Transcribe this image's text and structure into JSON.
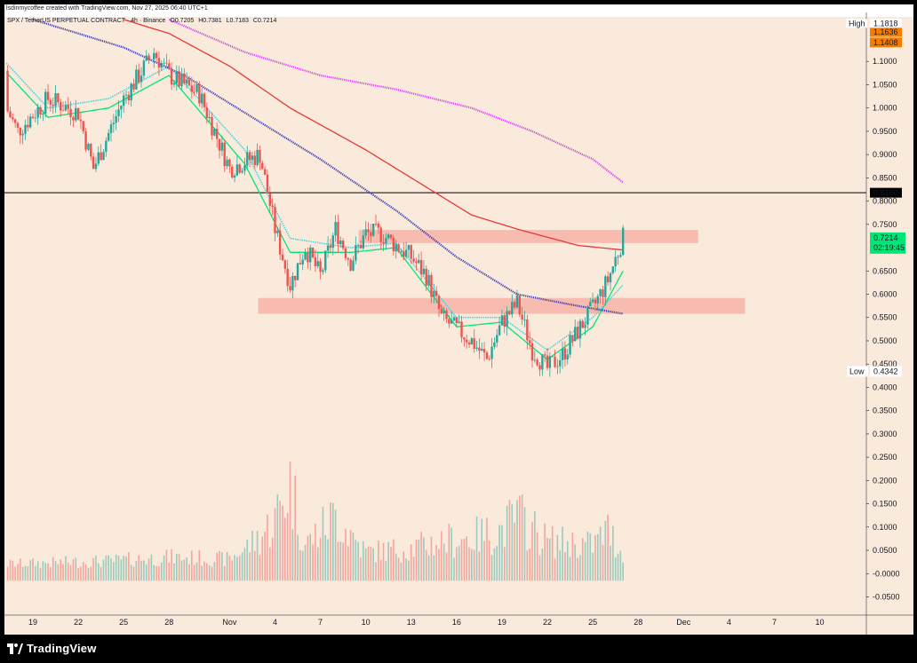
{
  "header": {
    "text": "lsdinmycoffee created with TradingView.com, Nov 27, 2025 06:40 UTC+1"
  },
  "legend": {
    "symbol": "SPX / TetherUS PERPETUAL CONTRACT · 4h · Binance",
    "open": "O0.7205",
    "high": "H0.7381",
    "low": "L0.7183",
    "close": "C0.7214"
  },
  "footer": {
    "brand": "TradingView"
  },
  "colors": {
    "background": "#faeadc",
    "up_candle": "#26a69a",
    "down_candle": "#ef5350",
    "ema_fast": "#00e676",
    "ema_cloud": "#4dd0e1",
    "ma_blue": "#3f3fb0",
    "ma_red": "#e53935",
    "ma_magenta": "#e040fb",
    "zone": "#f7b3a8",
    "current_price_bg": "#00e676",
    "high_low_badge": "#f57c00"
  },
  "chart_data": {
    "type": "candlestick",
    "title": "",
    "y_axis": {
      "ticks": [
        "1.1000",
        "1.0500",
        "1.0000",
        "0.9500",
        "0.9000",
        "0.8500",
        "0.8000",
        "0.7500",
        "0.6500",
        "0.6000",
        "0.5500",
        "0.5000",
        "0.4500",
        "0.4000",
        "0.3500",
        "0.3000",
        "0.2500",
        "0.2000",
        "0.1500",
        "0.1000",
        "0.0500",
        "-0.0000",
        "-0.0500"
      ],
      "range": [
        -0.07,
        1.19
      ]
    },
    "x_axis": {
      "ticks": [
        "19",
        "22",
        "25",
        "28",
        "Nov",
        "4",
        "7",
        "10",
        "13",
        "16",
        "19",
        "22",
        "25",
        "28",
        "Dec",
        "4",
        "7",
        "10"
      ]
    },
    "price_labels": {
      "high_label": "High",
      "high_value": "1.1818",
      "badge_a": "1.1636",
      "badge_b": "1.1408",
      "horizontal_line": "0.8180",
      "current_price": "0.7214",
      "countdown": "02:19:45",
      "low_label": "Low",
      "low_value": "0.4342"
    },
    "horizontal_line": 0.818,
    "resistance_zone": [
      0.71,
      0.738
    ],
    "support_zone": [
      0.558,
      0.592
    ],
    "price_path": [
      {
        "x": "Oct 16",
        "y": 1.08
      },
      {
        "x": "Oct 18",
        "y": 0.95
      },
      {
        "x": "Oct 20",
        "y": 1.02
      },
      {
        "x": "Oct 22",
        "y": 0.99
      },
      {
        "x": "Oct 23",
        "y": 0.87
      },
      {
        "x": "Oct 25",
        "y": 1.02
      },
      {
        "x": "Oct 27",
        "y": 1.12
      },
      {
        "x": "Oct 28",
        "y": 1.07
      },
      {
        "x": "Oct 30",
        "y": 1.03
      },
      {
        "x": "Nov 1",
        "y": 0.87
      },
      {
        "x": "Nov 3",
        "y": 0.9
      },
      {
        "x": "Nov 4",
        "y": 0.74
      },
      {
        "x": "Nov 5",
        "y": 0.62
      },
      {
        "x": "Nov 6",
        "y": 0.7
      },
      {
        "x": "Nov 7",
        "y": 0.64
      },
      {
        "x": "Nov 8",
        "y": 0.74
      },
      {
        "x": "Nov 9",
        "y": 0.67
      },
      {
        "x": "Nov 10",
        "y": 0.73
      },
      {
        "x": "Nov 11",
        "y": 0.73
      },
      {
        "x": "Nov 13",
        "y": 0.68
      },
      {
        "x": "Nov 14",
        "y": 0.64
      },
      {
        "x": "Nov 15",
        "y": 0.55
      },
      {
        "x": "Nov 17",
        "y": 0.5
      },
      {
        "x": "Nov 18",
        "y": 0.46
      },
      {
        "x": "Nov 19",
        "y": 0.54
      },
      {
        "x": "Nov 20",
        "y": 0.58
      },
      {
        "x": "Nov 21",
        "y": 0.48
      },
      {
        "x": "Nov 22",
        "y": 0.44
      },
      {
        "x": "Nov 23",
        "y": 0.47
      },
      {
        "x": "Nov 24",
        "y": 0.52
      },
      {
        "x": "Nov 25",
        "y": 0.57
      },
      {
        "x": "Nov 26",
        "y": 0.63
      },
      {
        "x": "Nov 27",
        "y": 0.7214
      }
    ],
    "series": [
      {
        "values": [
          {
            "x": "Oct 16",
            "y": 1.12
          },
          {
            "x": "Oct 20",
            "y": 0.98
          },
          {
            "x": "Oct 24",
            "y": 1.0
          },
          {
            "x": "Oct 28",
            "y": 1.07
          },
          {
            "x": "Nov 2",
            "y": 0.88
          },
          {
            "x": "Nov 5",
            "y": 0.69
          },
          {
            "x": "Nov 9",
            "y": 0.69
          },
          {
            "x": "Nov 12",
            "y": 0.7
          },
          {
            "x": "Nov 16",
            "y": 0.53
          },
          {
            "x": "Nov 19",
            "y": 0.54
          },
          {
            "x": "Nov 22",
            "y": 0.46
          },
          {
            "x": "Nov 25",
            "y": 0.53
          },
          {
            "x": "Nov 27",
            "y": 0.65
          }
        ]
      },
      {
        "values": [
          {
            "x": "Oct 16",
            "y": 1.14
          },
          {
            "x": "Oct 20",
            "y": 1.0
          },
          {
            "x": "Oct 24",
            "y": 1.02
          },
          {
            "x": "Oct 28",
            "y": 1.09
          },
          {
            "x": "Nov 2",
            "y": 0.91
          },
          {
            "x": "Nov 5",
            "y": 0.72
          },
          {
            "x": "Nov 9",
            "y": 0.7
          },
          {
            "x": "Nov 12",
            "y": 0.71
          },
          {
            "x": "Nov 16",
            "y": 0.55
          },
          {
            "x": "Nov 19",
            "y": 0.55
          },
          {
            "x": "Nov 22",
            "y": 0.48
          },
          {
            "x": "Nov 25",
            "y": 0.55
          },
          {
            "x": "Nov 27",
            "y": 0.62
          }
        ]
      },
      {
        "values": [
          {
            "x": "Oct 19",
            "y": 1.19
          },
          {
            "x": "Oct 25",
            "y": 1.13
          },
          {
            "x": "Oct 29",
            "y": 1.07
          },
          {
            "x": "Nov 2",
            "y": 0.99
          },
          {
            "x": "Nov 7",
            "y": 0.89
          },
          {
            "x": "Nov 12",
            "y": 0.78
          },
          {
            "x": "Nov 16",
            "y": 0.68
          },
          {
            "x": "Nov 20",
            "y": 0.6
          },
          {
            "x": "Nov 24",
            "y": 0.575
          },
          {
            "x": "Nov 27",
            "y": 0.558
          }
        ]
      },
      {
        "values": [
          {
            "x": "Oct 25",
            "y": 1.19
          },
          {
            "x": "Oct 28",
            "y": 1.16
          },
          {
            "x": "Nov 1",
            "y": 1.09
          },
          {
            "x": "Nov 5",
            "y": 1.0
          },
          {
            "x": "Nov 10",
            "y": 0.91
          },
          {
            "x": "Nov 14",
            "y": 0.83
          },
          {
            "x": "Nov 17",
            "y": 0.77
          },
          {
            "x": "Nov 20",
            "y": 0.74
          },
          {
            "x": "Nov 24",
            "y": 0.705
          },
          {
            "x": "Nov 27",
            "y": 0.695
          }
        ]
      },
      {
        "values": [
          {
            "x": "Oct 28",
            "y": 1.19
          },
          {
            "x": "Nov 2",
            "y": 1.12
          },
          {
            "x": "Nov 7",
            "y": 1.07
          },
          {
            "x": "Nov 12",
            "y": 1.04
          },
          {
            "x": "Nov 17",
            "y": 1.0
          },
          {
            "x": "Nov 21",
            "y": 0.95
          },
          {
            "x": "Nov 25",
            "y": 0.89
          },
          {
            "x": "Nov 27",
            "y": 0.84
          }
        ]
      }
    ],
    "volume": [
      {
        "x": "Oct 16",
        "y": 0.025
      },
      {
        "x": "Oct 20",
        "y": 0.03
      },
      {
        "x": "Oct 24",
        "y": 0.035
      },
      {
        "x": "Oct 28",
        "y": 0.045
      },
      {
        "x": "Nov 1",
        "y": 0.04
      },
      {
        "x": "Nov 3",
        "y": 0.1
      },
      {
        "x": "Nov 4",
        "y": 0.15
      },
      {
        "x": "Nov 5",
        "y": 0.25
      },
      {
        "x": "Nov 6",
        "y": 0.08
      },
      {
        "x": "Nov 8",
        "y": 0.16
      },
      {
        "x": "Nov 10",
        "y": 0.06
      },
      {
        "x": "Nov 13",
        "y": 0.07
      },
      {
        "x": "Nov 15",
        "y": 0.09
      },
      {
        "x": "Nov 17",
        "y": 0.1
      },
      {
        "x": "Nov 19",
        "y": 0.12
      },
      {
        "x": "Nov 20",
        "y": 0.16
      },
      {
        "x": "Nov 22",
        "y": 0.09
      },
      {
        "x": "Nov 25",
        "y": 0.08
      },
      {
        "x": "Nov 26",
        "y": 0.12
      },
      {
        "x": "Nov 27",
        "y": 0.05
      }
    ]
  }
}
